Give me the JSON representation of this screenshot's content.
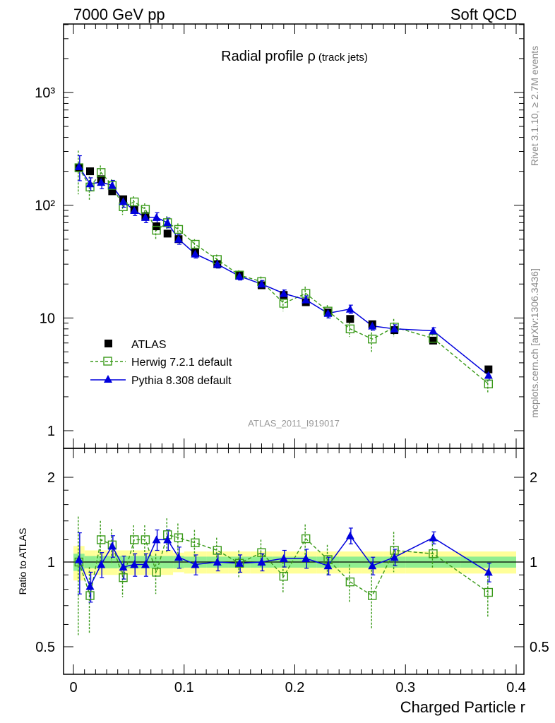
{
  "header": {
    "left": "7000 GeV pp",
    "right": "Soft QCD"
  },
  "title": {
    "main": "Radial profile ",
    "symbol": "ρ",
    "sub": "(track jets)"
  },
  "side_labels": {
    "rivet": "Rivet 3.1.10, ≥ 2.7M events",
    "mcplots": "mcplots.cern.ch [arXiv:1306.3436]"
  },
  "analysis_id": "ATLAS_2011_I919017",
  "legend": {
    "atlas": "ATLAS",
    "herwig": "Herwig 7.2.1 default",
    "pythia": "Pythia 8.308 default"
  },
  "colors": {
    "atlas": "#000000",
    "herwig": "#3a9a1a",
    "pythia": "#0000dd",
    "band_inner": "#90ee90",
    "band_outer": "#ffff99"
  },
  "chart_data": [
    {
      "type": "scatter",
      "panel": "main",
      "yscale": "log",
      "ylim": [
        0.7,
        4500
      ],
      "xlim": [
        -0.01,
        0.4
      ],
      "ytick_labels": {
        "1": "1",
        "10": "10",
        "100": "10²",
        "1000": "10³"
      },
      "x": [
        0.005,
        0.015,
        0.025,
        0.035,
        0.045,
        0.055,
        0.065,
        0.075,
        0.085,
        0.095,
        0.11,
        0.13,
        0.15,
        0.17,
        0.19,
        0.21,
        0.23,
        0.25,
        0.27,
        0.29,
        0.325,
        0.375
      ],
      "series": [
        {
          "key": "atlas",
          "values": [
            215,
            200,
            170,
            133,
            113,
            92,
            80,
            65,
            56,
            50,
            38,
            30,
            24,
            19.5,
            16,
            13.8,
            11.2,
            9.8,
            8.8,
            7.8,
            6.3,
            3.5
          ]
        },
        {
          "key": "herwig",
          "values": [
            215,
            145,
            195,
            150,
            97,
            107,
            92,
            60,
            70,
            61,
            45,
            33,
            24,
            21,
            13.5,
            16.5,
            11.5,
            8.0,
            6.5,
            8.3,
            6.6,
            2.6
          ],
          "errors": [
            90,
            35,
            30,
            20,
            15,
            13,
            12,
            10,
            10,
            8,
            5,
            3.5,
            2.5,
            2.3,
            2.0,
            2.5,
            1.5,
            1.2,
            1.5,
            1.5,
            0.7,
            0.45
          ]
        },
        {
          "key": "pythia",
          "values": [
            220,
            155,
            160,
            150,
            108,
            90,
            78,
            78,
            70,
            50,
            37,
            30,
            23.5,
            20,
            16.5,
            14.5,
            11,
            12,
            8.5,
            8.0,
            7.7,
            3.1
          ],
          "errors": [
            55,
            20,
            20,
            16,
            12,
            9,
            8,
            8,
            7,
            5,
            3,
            2.3,
            1.8,
            1.5,
            1.2,
            1.2,
            1.0,
            1.0,
            0.7,
            0.7,
            0.5,
            0.3
          ]
        }
      ]
    },
    {
      "type": "scatter",
      "panel": "ratio",
      "ylabel": "Ratio to ATLAS",
      "xlabel": "Charged Particle r",
      "ylim": [
        0.4,
        2.4
      ],
      "xlim": [
        -0.01,
        0.4
      ],
      "xticks": [
        0,
        0.1,
        0.2,
        0.3,
        0.4
      ],
      "xtick_labels": [
        "0",
        "0.1",
        "0.2",
        "0.3",
        "0.4"
      ],
      "yticks": [
        0.5,
        1,
        2
      ],
      "ytick_labels": [
        "0.5",
        "1",
        "2"
      ],
      "bands": {
        "edges": [
          0,
          0.01,
          0.02,
          0.03,
          0.04,
          0.05,
          0.06,
          0.07,
          0.08,
          0.09,
          0.1,
          0.12,
          0.14,
          0.16,
          0.18,
          0.2,
          0.22,
          0.24,
          0.26,
          0.28,
          0.3,
          0.35,
          0.4
        ],
        "inner": [
          0.07,
          0.05,
          0.05,
          0.05,
          0.05,
          0.05,
          0.05,
          0.05,
          0.05,
          0.05,
          0.045,
          0.045,
          0.045,
          0.045,
          0.045,
          0.045,
          0.045,
          0.045,
          0.045,
          0.045,
          0.045,
          0.045
        ],
        "outer": [
          0.14,
          0.1,
          0.1,
          0.1,
          0.1,
          0.1,
          0.1,
          0.1,
          0.1,
          0.08,
          0.09,
          0.09,
          0.09,
          0.09,
          0.09,
          0.09,
          0.09,
          0.09,
          0.09,
          0.09,
          0.09,
          0.09
        ]
      },
      "series": [
        {
          "key": "herwig",
          "values": [
            1.0,
            0.76,
            1.2,
            1.15,
            0.88,
            1.2,
            1.2,
            0.92,
            1.25,
            1.22,
            1.17,
            1.1,
            0.99,
            1.08,
            0.89,
            1.21,
            1.02,
            0.85,
            0.76,
            1.1,
            1.07,
            0.78
          ],
          "errors": [
            0.45,
            0.2,
            0.2,
            0.16,
            0.13,
            0.15,
            0.15,
            0.15,
            0.18,
            0.15,
            0.13,
            0.12,
            0.11,
            0.12,
            0.11,
            0.15,
            0.13,
            0.13,
            0.18,
            0.18,
            0.12,
            0.14
          ]
        },
        {
          "key": "pythia",
          "values": [
            1.02,
            0.82,
            0.98,
            1.14,
            0.96,
            0.98,
            0.98,
            1.2,
            1.2,
            1.04,
            0.98,
            1.0,
            0.99,
            1.0,
            1.03,
            1.03,
            0.97,
            1.24,
            0.97,
            1.04,
            1.22,
            0.92
          ],
          "errors": [
            0.25,
            0.1,
            0.1,
            0.1,
            0.09,
            0.09,
            0.09,
            0.1,
            0.1,
            0.09,
            0.08,
            0.07,
            0.07,
            0.07,
            0.07,
            0.08,
            0.07,
            0.08,
            0.07,
            0.07,
            0.06,
            0.07
          ]
        }
      ]
    }
  ]
}
